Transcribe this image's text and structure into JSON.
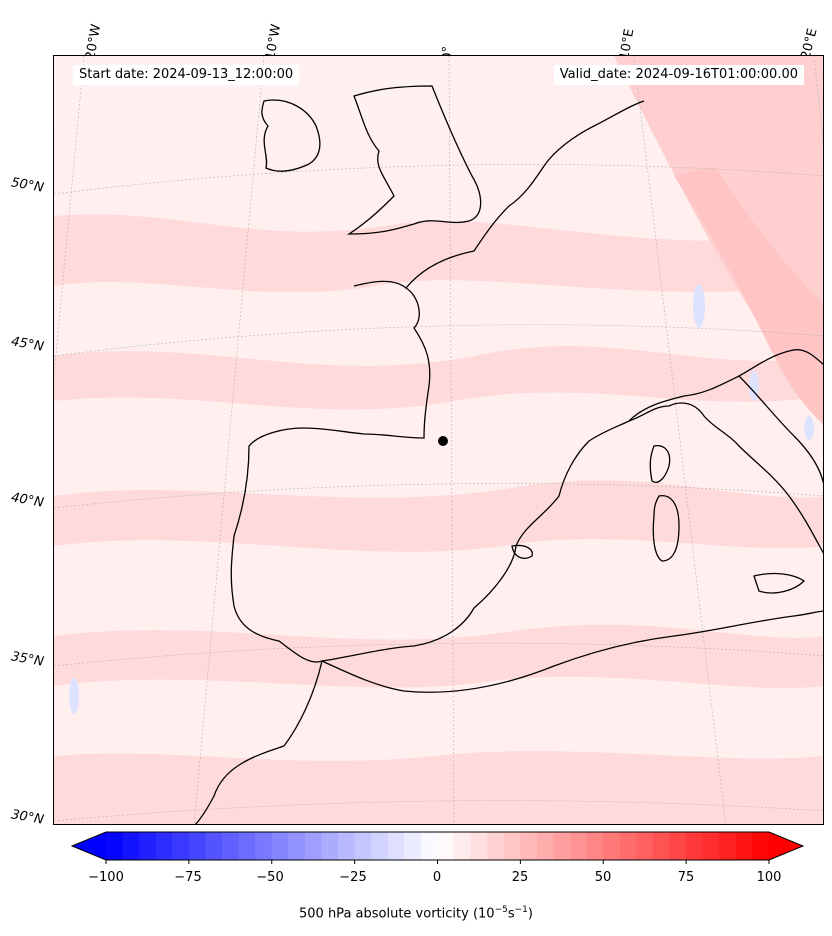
{
  "header": {
    "start_date": "Start date: 2024-09-13_12:00:00",
    "valid_date": "Valid_date: 2024-09-16T01:00:00.00"
  },
  "axes": {
    "longitude_labels": [
      "20°W",
      "10°W",
      "0°",
      "10°E",
      "20°E"
    ],
    "latitude_labels": [
      "50°N",
      "45°N",
      "40°N",
      "35°N",
      "30°N"
    ]
  },
  "colorbar": {
    "ticks": [
      "−100",
      "−75",
      "−50",
      "−25",
      "0",
      "25",
      "50",
      "75",
      "100"
    ],
    "min": -100,
    "max": 100,
    "label_main": "500 hPa absolute vorticity (10",
    "label_exp1": "−5",
    "label_mid": "s",
    "label_exp2": "−1",
    "label_end": ")",
    "low_color": "#0000ff",
    "mid_color": "#ffffff",
    "high_color": "#ff0000"
  },
  "map": {
    "field_color": "#ffe4e4",
    "coast_color": "#000000"
  }
}
